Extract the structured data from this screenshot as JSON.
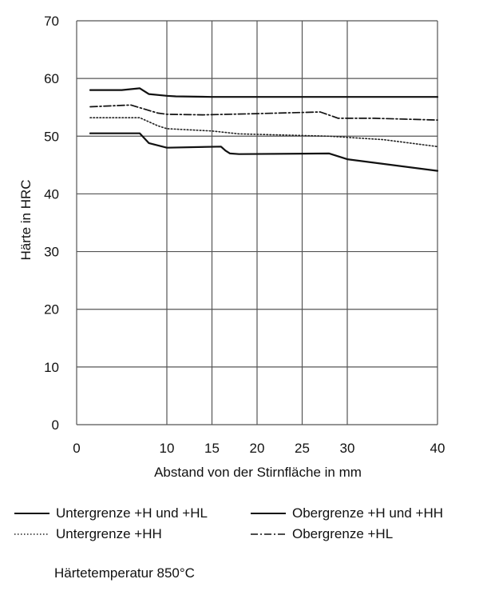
{
  "chart_data": {
    "type": "line",
    "xlabel": "Abstand von der Stirnfläche in mm",
    "ylabel": "Härte in HRC",
    "xlim": [
      0,
      40
    ],
    "ylim": [
      0,
      70
    ],
    "xticks": [
      0,
      10,
      15,
      20,
      25,
      30,
      40
    ],
    "yticks": [
      0,
      10,
      20,
      30,
      40,
      50,
      60,
      70
    ],
    "grid": true,
    "legend_position": "bottom",
    "series": [
      {
        "name": "Untergrenze +H und +HL",
        "style": "solid",
        "x": [
          1.5,
          7,
          8,
          10,
          16,
          16.5,
          17,
          18,
          28,
          30,
          40
        ],
        "y": [
          50.5,
          50.5,
          48.8,
          48,
          48.2,
          47.5,
          47,
          46.9,
          47,
          46,
          44
        ]
      },
      {
        "name": "Obergrenze +H und +HH",
        "style": "solid",
        "x": [
          1.5,
          5,
          7,
          8,
          10,
          11,
          15,
          30,
          40
        ],
        "y": [
          58,
          58,
          58.3,
          57.3,
          57,
          56.9,
          56.8,
          56.8,
          56.8
        ]
      },
      {
        "name": "Untergrenze +HH",
        "style": "dotted",
        "x": [
          1.5,
          7,
          9,
          10,
          15,
          18,
          28,
          34,
          40
        ],
        "y": [
          53.2,
          53.2,
          51.8,
          51.3,
          50.9,
          50.4,
          50,
          49.4,
          48.2
        ]
      },
      {
        "name": "Obergrenze +HL",
        "style": "dashdot",
        "x": [
          1.5,
          6,
          9,
          10,
          14,
          20,
          27,
          29,
          33,
          40
        ],
        "y": [
          55.1,
          55.4,
          54,
          53.8,
          53.7,
          53.9,
          54.2,
          53.1,
          53.1,
          52.8
        ]
      }
    ]
  },
  "footnote": "Härtetemperatur 850°C"
}
